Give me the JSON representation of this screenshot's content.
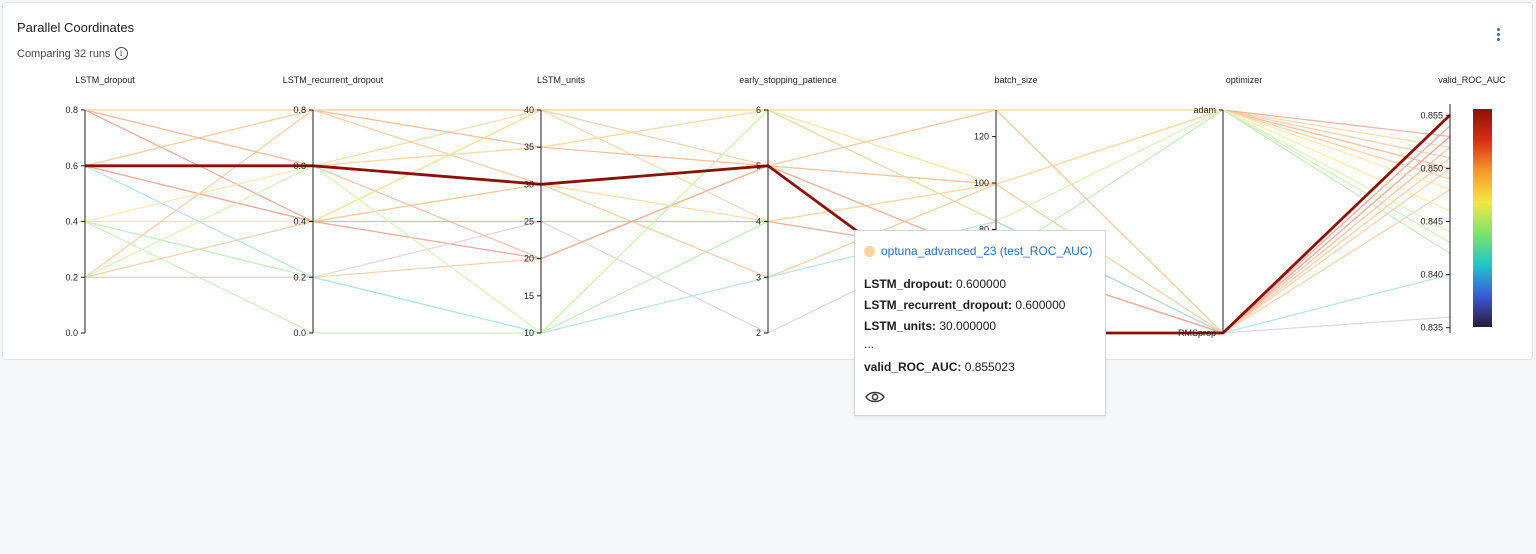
{
  "panel": {
    "title": "Parallel Coordinates",
    "subtitle": "Comparing 32 runs"
  },
  "icons": {
    "info": "info-icon",
    "menu": "more-vertical-icon",
    "eye": "eye-icon"
  },
  "tooltip": {
    "run_name": "optuna_advanced_23 (test_ROC_AUC)",
    "dot_color": "#fdd49e",
    "rows": [
      {
        "key": "LSTM_dropout:",
        "value": "0.600000"
      },
      {
        "key": "LSTM_recurrent_dropout:",
        "value": "0.600000"
      },
      {
        "key": "LSTM_units:",
        "value": "30.000000"
      },
      {
        "key": "",
        "value": "..."
      },
      {
        "key": "valid_ROC_AUC:",
        "value": "0.855023"
      }
    ]
  },
  "chart_data": {
    "type": "parallel_coordinates",
    "axes": [
      {
        "name": "LSTM_dropout",
        "range": [
          0,
          0.8
        ],
        "ticks": [
          "0.0",
          "0.2",
          "0.4",
          "0.6",
          "0.8"
        ],
        "tick_values": [
          0,
          0.2,
          0.4,
          0.6,
          0.8
        ]
      },
      {
        "name": "LSTM_recurrent_dropout",
        "range": [
          0,
          0.8
        ],
        "ticks": [
          "0.0",
          "0.2",
          "0.4",
          "0.6",
          "0.8"
        ],
        "tick_values": [
          0,
          0.2,
          0.4,
          0.6,
          0.8
        ]
      },
      {
        "name": "LSTM_units",
        "range": [
          10,
          40
        ],
        "ticks": [
          "10",
          "15",
          "20",
          "25",
          "30",
          "35",
          "40"
        ],
        "tick_values": [
          10,
          15,
          20,
          25,
          30,
          35,
          40
        ]
      },
      {
        "name": "early_stopping_patience",
        "range": [
          2,
          6
        ],
        "ticks": [
          "2",
          "3",
          "4",
          "5",
          "6"
        ],
        "tick_values": [
          2,
          3,
          4,
          5,
          6
        ]
      },
      {
        "name": "batch_size",
        "range": [
          32,
          128
        ],
        "ticks": [
          "80",
          "100",
          "120"
        ],
        "tick_values": [
          80,
          100,
          120
        ]
      },
      {
        "name": "optimizer",
        "categorical": true,
        "categories": [
          "RMSprop",
          "adam"
        ],
        "ticks": [
          "RMSprop",
          "adam"
        ]
      },
      {
        "name": "valid_ROC_AUC",
        "range": [
          0.8345,
          0.8555
        ],
        "ticks": [
          "0.835",
          "0.840",
          "0.845",
          "0.850",
          "0.855"
        ],
        "tick_values": [
          0.835,
          0.84,
          0.845,
          0.85,
          0.855
        ]
      }
    ],
    "highlighted": {
      "values": [
        0.6,
        0.6,
        30,
        5,
        32,
        "RMSprop",
        0.855023
      ],
      "color": "#8b1106"
    },
    "colorscale": {
      "stops": [
        "#2a1a3a",
        "#3b5bd6",
        "#1fc8c8",
        "#7ce36a",
        "#f4e641",
        "#f59a2a",
        "#d92e16",
        "#8b1106"
      ],
      "range": [
        0.8345,
        0.8555
      ]
    },
    "runs": [
      {
        "values": [
          0.8,
          0.6,
          40,
          6,
          128,
          "adam",
          0.852
        ],
        "color": "#fdd49e"
      },
      {
        "values": [
          0.6,
          0.8,
          35,
          5,
          96,
          "adam",
          0.85
        ],
        "color": "#f9b08a"
      },
      {
        "values": [
          0.4,
          0.4,
          30,
          4,
          96,
          "adam",
          0.849
        ],
        "color": "#fdd49e"
      },
      {
        "values": [
          0.2,
          0.2,
          20,
          5,
          128,
          "RMSprop",
          0.848
        ],
        "color": "#f7c9a0"
      },
      {
        "values": [
          0.6,
          0.4,
          40,
          6,
          80,
          "RMSprop",
          0.853
        ],
        "color": "#f1a08e"
      },
      {
        "values": [
          0.4,
          0.2,
          10,
          4,
          64,
          "adam",
          0.842
        ],
        "color": "#b7ecb2"
      },
      {
        "values": [
          0.2,
          0.8,
          30,
          3,
          96,
          "RMSprop",
          0.851
        ],
        "color": "#f9c49a"
      },
      {
        "values": [
          0.8,
          0.4,
          20,
          5,
          64,
          "RMSprop",
          0.854
        ],
        "color": "#e79a8a"
      },
      {
        "values": [
          0.6,
          0.6,
          35,
          6,
          128,
          "adam",
          0.853
        ],
        "color": "#eaa592"
      },
      {
        "values": [
          0.4,
          0.0,
          10,
          6,
          96,
          "adam",
          0.843
        ],
        "color": "#c7efb6"
      },
      {
        "values": [
          0.2,
          0.2,
          25,
          2,
          80,
          "RMSprop",
          0.836
        ],
        "color": "#d8d0d8"
      },
      {
        "values": [
          0.6,
          0.8,
          40,
          4,
          96,
          "adam",
          0.849
        ],
        "color": "#fbd3a8"
      },
      {
        "values": [
          0.8,
          0.6,
          20,
          5,
          64,
          "RMSprop",
          0.852
        ],
        "color": "#f5b59a"
      },
      {
        "values": [
          0.4,
          0.4,
          40,
          6,
          128,
          "adam",
          0.846
        ],
        "color": "#f2eea0"
      },
      {
        "values": [
          0.6,
          0.2,
          10,
          3,
          80,
          "RMSprop",
          0.84
        ],
        "color": "#a9e3d8"
      },
      {
        "values": [
          0.2,
          0.4,
          30,
          5,
          96,
          "adam",
          0.851
        ],
        "color": "#f8c5a0"
      },
      {
        "values": [
          0.6,
          0.4,
          25,
          4,
          64,
          "RMSprop",
          0.853
        ],
        "color": "#eea79a"
      },
      {
        "values": [
          0.4,
          0.6,
          35,
          6,
          96,
          "adam",
          0.848
        ],
        "color": "#fde4b0"
      },
      {
        "values": [
          0.8,
          0.8,
          40,
          5,
          128,
          "RMSprop",
          0.85
        ],
        "color": "#f9c8a6"
      },
      {
        "values": [
          0.2,
          0.6,
          10,
          6,
          80,
          "adam",
          0.844
        ],
        "color": "#d3f0b2"
      }
    ]
  }
}
